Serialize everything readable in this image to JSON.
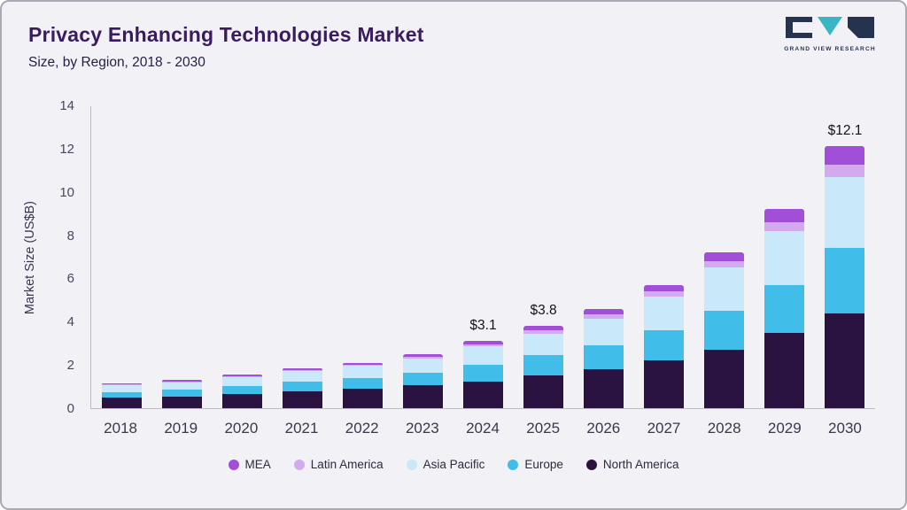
{
  "header": {
    "title": "Privacy Enhancing Technologies Market",
    "subtitle": "Size, by Region, 2018 - 2030",
    "logo_text": "GRAND VIEW RESEARCH"
  },
  "chart_data": {
    "type": "bar",
    "stacked": true,
    "title": "Privacy Enhancing Technologies Market",
    "subtitle": "Size, by Region, 2018 - 2030",
    "xlabel": "",
    "ylabel": "Market Size (US$B)",
    "ylim": [
      0,
      14
    ],
    "yticks": [
      0,
      2,
      4,
      6,
      8,
      10,
      12,
      14
    ],
    "grid": false,
    "legend_position": "bottom",
    "categories": [
      "2018",
      "2019",
      "2020",
      "2021",
      "2022",
      "2023",
      "2024",
      "2025",
      "2026",
      "2027",
      "2028",
      "2029",
      "2030"
    ],
    "series": [
      {
        "name": "North America",
        "color": "#2b1341",
        "values": [
          0.48,
          0.55,
          0.65,
          0.78,
          0.9,
          1.05,
          1.25,
          1.5,
          1.8,
          2.2,
          2.7,
          3.5,
          4.4
        ]
      },
      {
        "name": "Europe",
        "color": "#41bde9",
        "values": [
          0.27,
          0.31,
          0.37,
          0.43,
          0.5,
          0.6,
          0.75,
          0.95,
          1.1,
          1.4,
          1.8,
          2.2,
          3.0
        ]
      },
      {
        "name": "Asia Pacific",
        "color": "#c9e8f9",
        "values": [
          0.31,
          0.35,
          0.42,
          0.5,
          0.55,
          0.65,
          0.85,
          1.0,
          1.25,
          1.55,
          2.0,
          2.5,
          3.3
        ]
      },
      {
        "name": "Latin America",
        "color": "#d4aaee",
        "values": [
          0.04,
          0.04,
          0.05,
          0.06,
          0.07,
          0.09,
          0.11,
          0.15,
          0.2,
          0.25,
          0.3,
          0.4,
          0.55
        ]
      },
      {
        "name": "MEA",
        "color": "#a14fd8",
        "values": [
          0.05,
          0.05,
          0.06,
          0.08,
          0.08,
          0.11,
          0.14,
          0.2,
          0.25,
          0.3,
          0.4,
          0.6,
          0.85
        ]
      }
    ],
    "totals_labeled": [
      {
        "category": "2024",
        "label": "$3.1"
      },
      {
        "category": "2025",
        "label": "$3.8"
      },
      {
        "category": "2030",
        "label": "$12.1"
      }
    ],
    "legend_order": [
      "MEA",
      "Latin America",
      "Asia Pacific",
      "Europe",
      "North America"
    ]
  }
}
